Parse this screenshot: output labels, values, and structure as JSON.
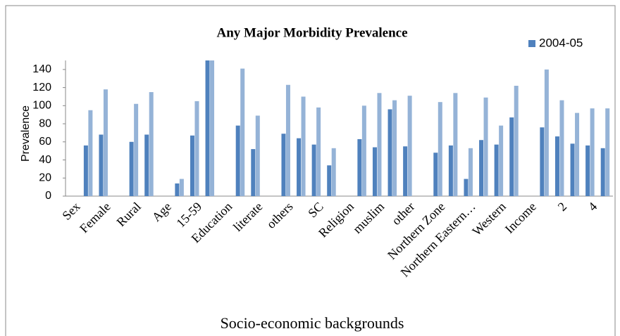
{
  "chart_data": {
    "type": "bar",
    "title": "Any Major Morbidity Prevalence",
    "x_label": "Socio-economic backgrounds",
    "y_label": "Prevalence",
    "categories": [
      "Sex",
      null,
      "Female",
      null,
      "Rural",
      null,
      "Age",
      null,
      "15-59",
      null,
      "Education",
      null,
      "literate",
      null,
      "others",
      null,
      "SC",
      null,
      "Religion",
      null,
      "muslim",
      null,
      "other",
      null,
      "Northern Zone",
      null,
      "Northern Eastern…",
      null,
      "Western",
      null,
      "Income",
      null,
      "2",
      null,
      "4",
      null
    ],
    "series": [
      {
        "name": "2004-05",
        "color": "#4f81bd",
        "values": [
          null,
          56,
          68,
          null,
          60,
          68,
          null,
          14,
          67,
          150,
          null,
          78,
          52,
          null,
          69,
          64,
          57,
          34,
          null,
          63,
          54,
          96,
          55,
          null,
          48,
          56,
          19,
          62,
          57,
          87,
          null,
          76,
          66,
          58,
          56,
          53
        ]
      },
      {
        "color": "#95b3d7",
        "values": [
          null,
          95,
          118,
          null,
          102,
          115,
          null,
          19,
          105,
          150,
          null,
          141,
          89,
          null,
          123,
          110,
          98,
          53,
          null,
          100,
          114,
          106,
          111,
          null,
          104,
          114,
          53,
          109,
          78,
          122,
          null,
          140,
          106,
          92,
          97,
          97
        ]
      }
    ],
    "ylim": [
      0,
      150
    ],
    "yticks": [
      0,
      20,
      40,
      60,
      80,
      100,
      120,
      140
    ],
    "legend": "top-right"
  }
}
